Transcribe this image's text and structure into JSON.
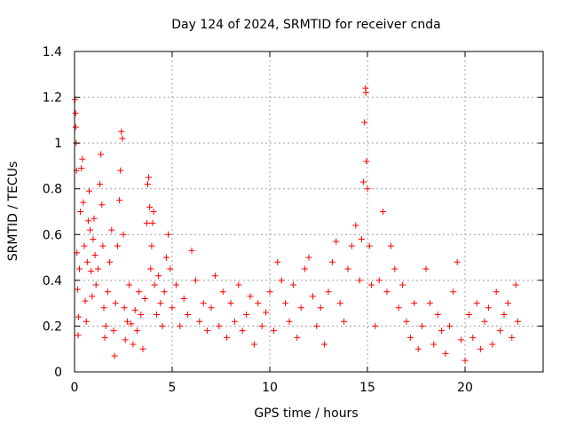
{
  "chart_data": {
    "type": "scatter",
    "title": "Day 124 of 2024, SRMTID for receiver cnda",
    "xlabel": "GPS time / hours",
    "ylabel": "SRMTID / TECUs",
    "xlim": [
      0,
      24
    ],
    "ylim": [
      0,
      1.4
    ],
    "xticks": [
      0,
      5,
      10,
      15,
      20
    ],
    "yticks": [
      0,
      0.2,
      0.4,
      0.6,
      0.8,
      1,
      1.2,
      1.4
    ],
    "xtick_labels": [
      "0",
      "5",
      "10",
      "15",
      "20"
    ],
    "ytick_labels": [
      "0",
      "0.2",
      "0.4",
      "0.6",
      "0.8",
      "1",
      "1.2",
      "1.4"
    ],
    "grid": true,
    "marker": "+",
    "color": "#ff0000",
    "series": [
      {
        "name": "SRMTID",
        "points": [
          [
            0.02,
            1.19
          ],
          [
            0.05,
            1.13
          ],
          [
            0.06,
            1.07
          ],
          [
            0.08,
            1.0
          ],
          [
            0.1,
            0.88
          ],
          [
            0.12,
            0.52
          ],
          [
            0.15,
            0.36
          ],
          [
            0.18,
            0.16
          ],
          [
            0.2,
            0.24
          ],
          [
            0.25,
            0.45
          ],
          [
            0.3,
            0.7
          ],
          [
            0.35,
            0.89
          ],
          [
            0.4,
            0.93
          ],
          [
            0.45,
            0.74
          ],
          [
            0.5,
            0.55
          ],
          [
            0.55,
            0.31
          ],
          [
            0.6,
            0.22
          ],
          [
            0.65,
            0.48
          ],
          [
            0.7,
            0.66
          ],
          [
            0.75,
            0.79
          ],
          [
            0.8,
            0.62
          ],
          [
            0.85,
            0.44
          ],
          [
            0.9,
            0.33
          ],
          [
            0.95,
            0.58
          ],
          [
            1.0,
            0.67
          ],
          [
            1.05,
            0.51
          ],
          [
            1.1,
            0.38
          ],
          [
            1.2,
            0.45
          ],
          [
            1.3,
            0.82
          ],
          [
            1.35,
            0.95
          ],
          [
            1.4,
            0.73
          ],
          [
            1.45,
            0.55
          ],
          [
            1.5,
            0.28
          ],
          [
            1.55,
            0.15
          ],
          [
            1.6,
            0.2
          ],
          [
            1.7,
            0.35
          ],
          [
            1.8,
            0.48
          ],
          [
            1.9,
            0.62
          ],
          [
            2.0,
            0.18
          ],
          [
            2.05,
            0.07
          ],
          [
            2.1,
            0.3
          ],
          [
            2.2,
            0.55
          ],
          [
            2.3,
            0.75
          ],
          [
            2.35,
            0.88
          ],
          [
            2.4,
            1.05
          ],
          [
            2.45,
            1.02
          ],
          [
            2.5,
            0.6
          ],
          [
            2.55,
            0.28
          ],
          [
            2.6,
            0.14
          ],
          [
            2.7,
            0.22
          ],
          [
            2.8,
            0.38
          ],
          [
            2.9,
            0.21
          ],
          [
            3.0,
            0.12
          ],
          [
            3.1,
            0.27
          ],
          [
            3.2,
            0.18
          ],
          [
            3.3,
            0.35
          ],
          [
            3.4,
            0.25
          ],
          [
            3.5,
            0.1
          ],
          [
            3.6,
            0.32
          ],
          [
            3.7,
            0.65
          ],
          [
            3.75,
            0.82
          ],
          [
            3.8,
            0.85
          ],
          [
            3.85,
            0.72
          ],
          [
            3.9,
            0.45
          ],
          [
            3.95,
            0.55
          ],
          [
            4.0,
            0.65
          ],
          [
            4.05,
            0.7
          ],
          [
            4.1,
            0.38
          ],
          [
            4.2,
            0.25
          ],
          [
            4.3,
            0.42
          ],
          [
            4.4,
            0.3
          ],
          [
            4.5,
            0.2
          ],
          [
            4.6,
            0.35
          ],
          [
            4.7,
            0.5
          ],
          [
            4.8,
            0.6
          ],
          [
            4.9,
            0.45
          ],
          [
            5.0,
            0.28
          ],
          [
            5.2,
            0.38
          ],
          [
            5.4,
            0.2
          ],
          [
            5.6,
            0.32
          ],
          [
            5.8,
            0.25
          ],
          [
            6.0,
            0.53
          ],
          [
            6.2,
            0.4
          ],
          [
            6.4,
            0.22
          ],
          [
            6.6,
            0.3
          ],
          [
            6.8,
            0.18
          ],
          [
            7.0,
            0.28
          ],
          [
            7.2,
            0.42
          ],
          [
            7.4,
            0.2
          ],
          [
            7.6,
            0.35
          ],
          [
            7.8,
            0.15
          ],
          [
            8.0,
            0.3
          ],
          [
            8.2,
            0.22
          ],
          [
            8.4,
            0.38
          ],
          [
            8.6,
            0.18
          ],
          [
            8.8,
            0.25
          ],
          [
            9.0,
            0.33
          ],
          [
            9.2,
            0.12
          ],
          [
            9.4,
            0.3
          ],
          [
            9.6,
            0.2
          ],
          [
            9.8,
            0.26
          ],
          [
            10.0,
            0.35
          ],
          [
            10.2,
            0.18
          ],
          [
            10.4,
            0.48
          ],
          [
            10.6,
            0.4
          ],
          [
            10.8,
            0.3
          ],
          [
            11.0,
            0.22
          ],
          [
            11.2,
            0.38
          ],
          [
            11.4,
            0.15
          ],
          [
            11.6,
            0.28
          ],
          [
            11.8,
            0.45
          ],
          [
            12.0,
            0.5
          ],
          [
            12.2,
            0.33
          ],
          [
            12.4,
            0.2
          ],
          [
            12.6,
            0.28
          ],
          [
            12.8,
            0.12
          ],
          [
            13.0,
            0.35
          ],
          [
            13.2,
            0.48
          ],
          [
            13.4,
            0.57
          ],
          [
            13.6,
            0.3
          ],
          [
            13.8,
            0.22
          ],
          [
            14.0,
            0.45
          ],
          [
            14.2,
            0.55
          ],
          [
            14.4,
            0.64
          ],
          [
            14.6,
            0.4
          ],
          [
            14.7,
            0.58
          ],
          [
            14.8,
            0.83
          ],
          [
            14.85,
            1.09
          ],
          [
            14.9,
            1.24
          ],
          [
            14.92,
            1.22
          ],
          [
            14.95,
            0.92
          ],
          [
            15.0,
            0.8
          ],
          [
            15.1,
            0.55
          ],
          [
            15.2,
            0.38
          ],
          [
            15.4,
            0.2
          ],
          [
            15.6,
            0.4
          ],
          [
            15.8,
            0.7
          ],
          [
            16.0,
            0.35
          ],
          [
            16.2,
            0.55
          ],
          [
            16.4,
            0.45
          ],
          [
            16.6,
            0.28
          ],
          [
            16.8,
            0.38
          ],
          [
            17.0,
            0.22
          ],
          [
            17.2,
            0.15
          ],
          [
            17.4,
            0.3
          ],
          [
            17.6,
            0.1
          ],
          [
            17.8,
            0.2
          ],
          [
            18.0,
            0.45
          ],
          [
            18.2,
            0.3
          ],
          [
            18.4,
            0.12
          ],
          [
            18.6,
            0.25
          ],
          [
            18.8,
            0.18
          ],
          [
            19.0,
            0.08
          ],
          [
            19.2,
            0.2
          ],
          [
            19.4,
            0.35
          ],
          [
            19.6,
            0.48
          ],
          [
            19.8,
            0.14
          ],
          [
            20.0,
            0.05
          ],
          [
            20.2,
            0.25
          ],
          [
            20.4,
            0.15
          ],
          [
            20.6,
            0.3
          ],
          [
            20.8,
            0.1
          ],
          [
            21.0,
            0.22
          ],
          [
            21.2,
            0.28
          ],
          [
            21.4,
            0.12
          ],
          [
            21.6,
            0.35
          ],
          [
            21.8,
            0.18
          ],
          [
            22.0,
            0.25
          ],
          [
            22.2,
            0.3
          ],
          [
            22.4,
            0.15
          ],
          [
            22.6,
            0.38
          ],
          [
            22.7,
            0.22
          ]
        ]
      }
    ]
  }
}
